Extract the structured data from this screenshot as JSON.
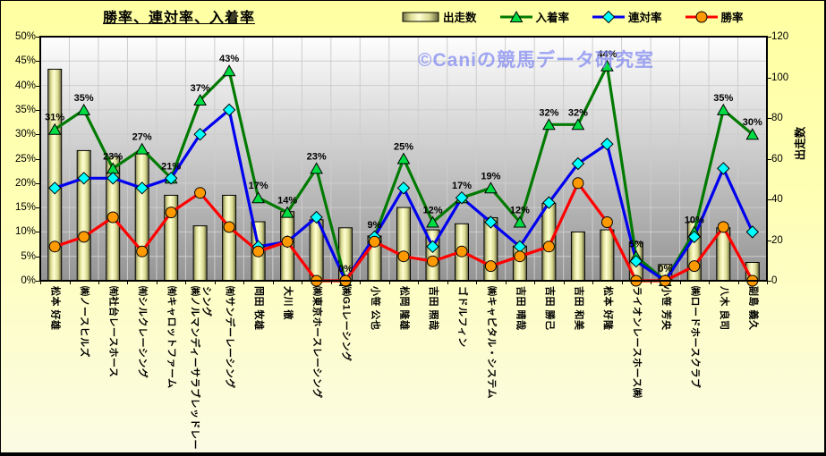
{
  "title": "勝率、連対率、入着率",
  "watermark": "©Caniの競馬データ研究室",
  "legend": [
    {
      "label": "出走数",
      "type": "bar"
    },
    {
      "label": "入着率",
      "type": "line",
      "line_color": "#007a00",
      "marker": "triangle",
      "marker_color": "#00dd44"
    },
    {
      "label": "連対率",
      "type": "line",
      "line_color": "#0000ee",
      "marker": "diamond",
      "marker_color": "#00ffff"
    },
    {
      "label": "勝率",
      "type": "line",
      "line_color": "#ff0000",
      "marker": "circle",
      "marker_color": "#ff9900"
    }
  ],
  "chart_data": {
    "type": "bar+line combo",
    "title": "勝率、連対率、入着率",
    "grid": "on",
    "legend_position": "top",
    "categories": [
      "松本 好雄",
      "㈱ノースヒルズ",
      "㈲社台レースホース",
      "㈲シルクレーシング",
      "㈲キャロットファーム",
      "㈱ノルマンディーサラブレッドレーシング",
      "㈲サンデーレーシング",
      "岡田 牧雄",
      "大川 徹",
      "㈱東京ホースレーシング",
      "㈱G1レーシング",
      "小笹 公也",
      "松岡 隆雄",
      "吉田 照哉",
      "ゴドルフィン",
      "㈱キャピタル・システム",
      "吉田 晴哉",
      "吉田 勝己",
      "吉田 和美",
      "松本 好隆",
      "ライオンレースホース㈱",
      "小笹 芳央",
      "㈱ロードホースクラブ",
      "八木 良司",
      "副島 義久"
    ],
    "series": [
      {
        "name": "出走数",
        "type": "bar",
        "axis": "right",
        "values": [
          104,
          64,
          61,
          63,
          42,
          27,
          42,
          29,
          34,
          30,
          26,
          22,
          36,
          25,
          28,
          31,
          17,
          38,
          24,
          25,
          19,
          8,
          29,
          26,
          9
        ],
        "fill": "gradient-yellow"
      },
      {
        "name": "入着率",
        "type": "line",
        "axis": "left",
        "unit": "%",
        "data_labels": true,
        "values": [
          31,
          35,
          23,
          27,
          21,
          37,
          43,
          17,
          14,
          23,
          0,
          9,
          25,
          12,
          17,
          19,
          12,
          32,
          32,
          44,
          5,
          0,
          10,
          35,
          30
        ],
        "line_color": "#007a00",
        "marker": "triangle",
        "marker_color": "#00dd44"
      },
      {
        "name": "連対率",
        "type": "line",
        "axis": "left",
        "unit": "%",
        "data_labels": false,
        "values": [
          19,
          21,
          21,
          19,
          21,
          30,
          35,
          7,
          8,
          13,
          0,
          9,
          19,
          7,
          17,
          12,
          7,
          16,
          24,
          28,
          4,
          0,
          9,
          23,
          10
        ],
        "line_color": "#0000ee",
        "marker": "diamond",
        "marker_color": "#00ffff"
      },
      {
        "name": "勝率",
        "type": "line",
        "axis": "left",
        "unit": "%",
        "data_labels": false,
        "values": [
          7,
          9,
          13,
          6,
          14,
          18,
          11,
          6,
          8,
          0,
          0,
          8,
          5,
          4,
          6,
          3,
          5,
          7,
          20,
          12,
          0,
          0,
          3,
          11,
          0
        ],
        "line_color": "#ff0000",
        "marker": "circle",
        "marker_color": "#ff9900"
      }
    ],
    "left_axis": {
      "min": 0,
      "max": 50,
      "step": 5,
      "format": "percent",
      "ticks": [
        "0%",
        "5%",
        "10%",
        "15%",
        "20%",
        "25%",
        "30%",
        "35%",
        "40%",
        "45%",
        "50%"
      ]
    },
    "right_axis": {
      "min": 0,
      "max": 120,
      "step": 20,
      "title": "出走数",
      "ticks": [
        "0",
        "20",
        "40",
        "60",
        "80",
        "100",
        "120"
      ]
    },
    "colors": {
      "background_top": "#ffffa2",
      "background_bottom": "#fbfbe4",
      "plot_top": "#fefefe",
      "plot_bottom": "#949494",
      "gridline": "#cdcdcd",
      "bar_light": "#ffffd2",
      "bar_dark": "#73734a",
      "watermark": "#7d85f0"
    }
  }
}
